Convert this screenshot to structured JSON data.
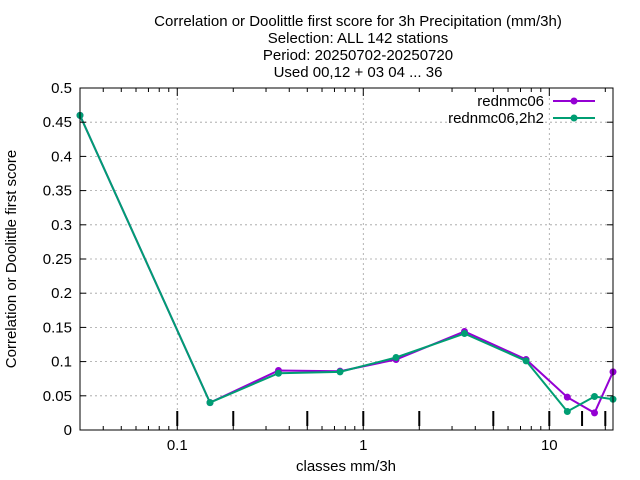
{
  "chart_data": {
    "type": "line",
    "title": [
      "Correlation or Doolittle first score  for 3h Precipitation (mm/3h)",
      "Selection: ALL    142 stations",
      "Period: 20250702-20250720",
      "Used 00,12 + 03 04 ... 36"
    ],
    "xlabel": "classes mm/3h",
    "ylabel": "Correlation or Doolittle first score",
    "x_scale": "log",
    "xlim": [
      0.03,
      22
    ],
    "ylim": [
      0,
      0.5
    ],
    "x_ticks": [
      0.1,
      1,
      10
    ],
    "x_tick_labels": [
      "0.1",
      "1",
      "10"
    ],
    "y_ticks": [
      0,
      0.05,
      0.1,
      0.15,
      0.2,
      0.25,
      0.3,
      0.35,
      0.4,
      0.45,
      0.5
    ],
    "y_tick_labels": [
      "0",
      "0.05",
      "0.1",
      "0.15",
      "0.2",
      "0.25",
      "0.3",
      "0.35",
      "0.4",
      "0.45",
      "0.5"
    ],
    "grid": true,
    "legend_position": "top-right",
    "class_markers_x": [
      0.1,
      0.2,
      0.5,
      1,
      2,
      5,
      10,
      15,
      20
    ],
    "series": [
      {
        "name": "rednmc06",
        "color": "#9400d3",
        "x": [
          0.03,
          0.15,
          0.35,
          0.75,
          1.5,
          3.5,
          7.5,
          12.5,
          17.5,
          22
        ],
        "y": [
          0.46,
          0.04,
          0.087,
          0.086,
          0.103,
          0.144,
          0.103,
          0.048,
          0.025,
          0.085
        ]
      },
      {
        "name": "rednmc06,2h2",
        "color": "#009e73",
        "x": [
          0.03,
          0.15,
          0.35,
          0.75,
          1.5,
          3.5,
          7.5,
          12.5,
          17.5,
          22
        ],
        "y": [
          0.46,
          0.04,
          0.083,
          0.085,
          0.106,
          0.141,
          0.101,
          0.027,
          0.049,
          0.045
        ]
      }
    ]
  }
}
